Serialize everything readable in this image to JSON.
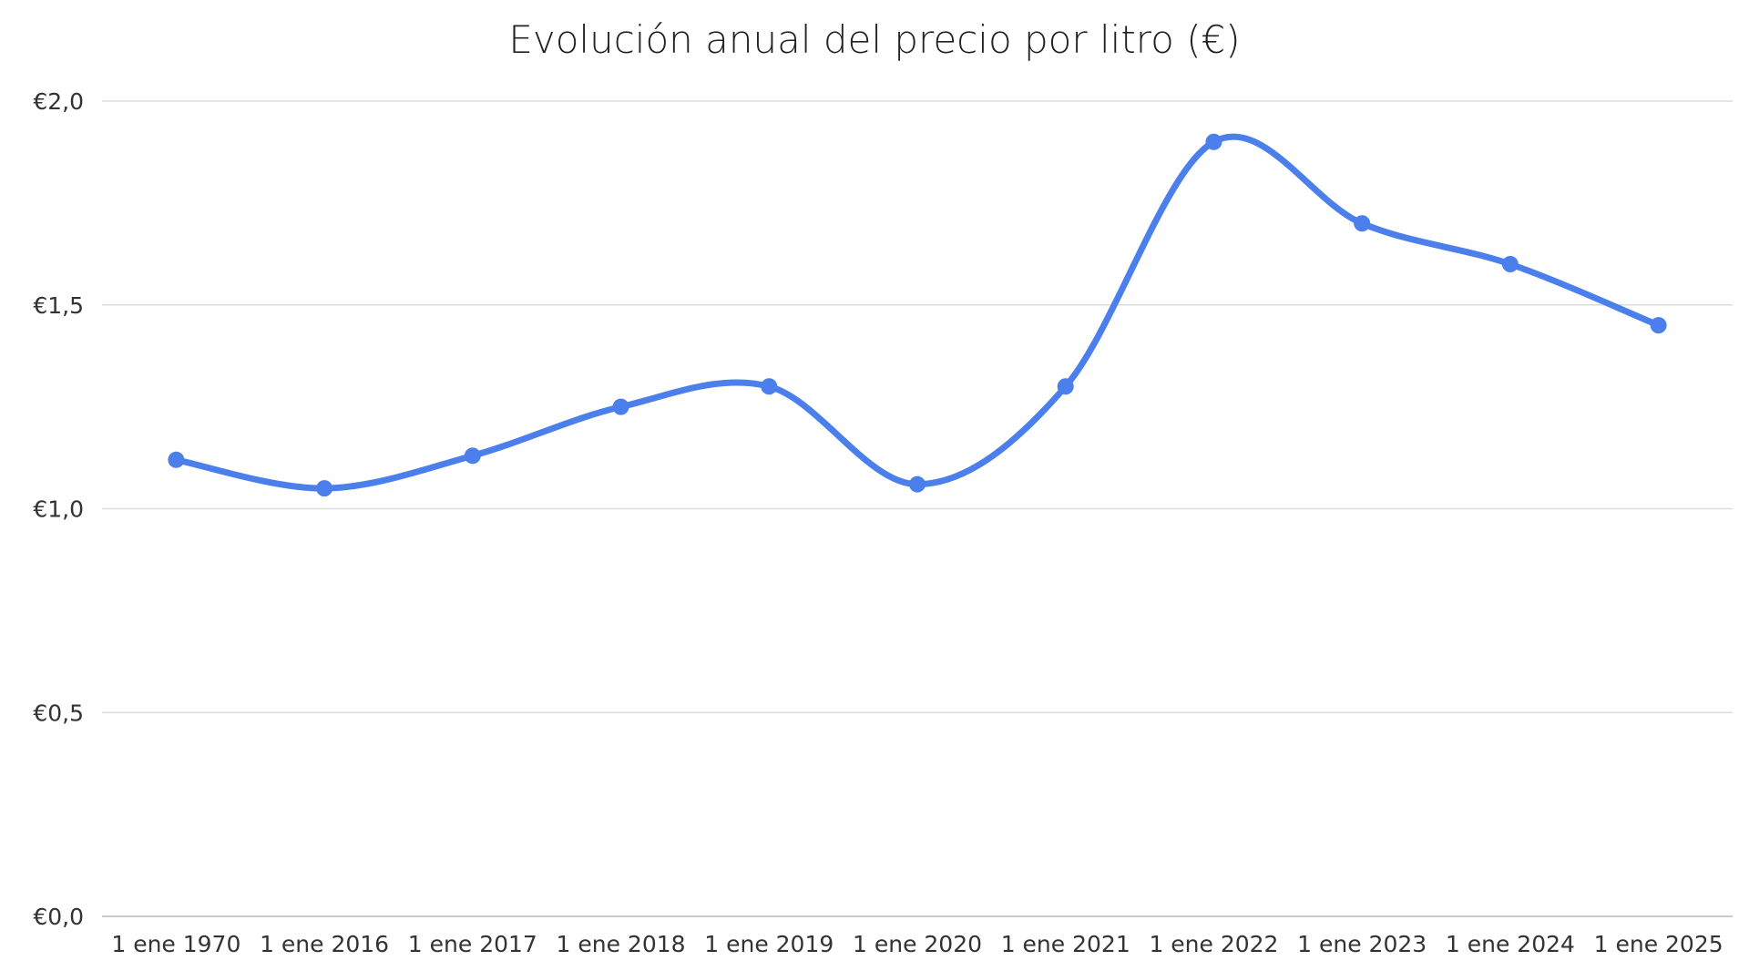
{
  "chart_data": {
    "type": "line",
    "title": "Evolución anual del precio por litro (€)",
    "xlabel": "",
    "ylabel": "",
    "categories": [
      "1 ene 1970",
      "1 ene 2016",
      "1 ene 2017",
      "1 ene 2018",
      "1 ene 2019",
      "1 ene 2020",
      "1 ene 2021",
      "1 ene 2022",
      "1 ene 2023",
      "1 ene 2024",
      "1 ene 2025"
    ],
    "series": [
      {
        "values": [
          1.12,
          1.05,
          1.13,
          1.25,
          1.3,
          1.06,
          1.3,
          1.9,
          1.7,
          1.6,
          1.45
        ],
        "color": "#4a7fec"
      }
    ],
    "ylim": [
      0,
      2
    ],
    "yticks": [
      0,
      0.5,
      1.0,
      1.5,
      2.0
    ],
    "ytick_labels": [
      "€0,0",
      "€0,5",
      "€1,0",
      "€1,5",
      "€2,0"
    ],
    "grid": true,
    "legend": false,
    "line_style": "smooth"
  }
}
